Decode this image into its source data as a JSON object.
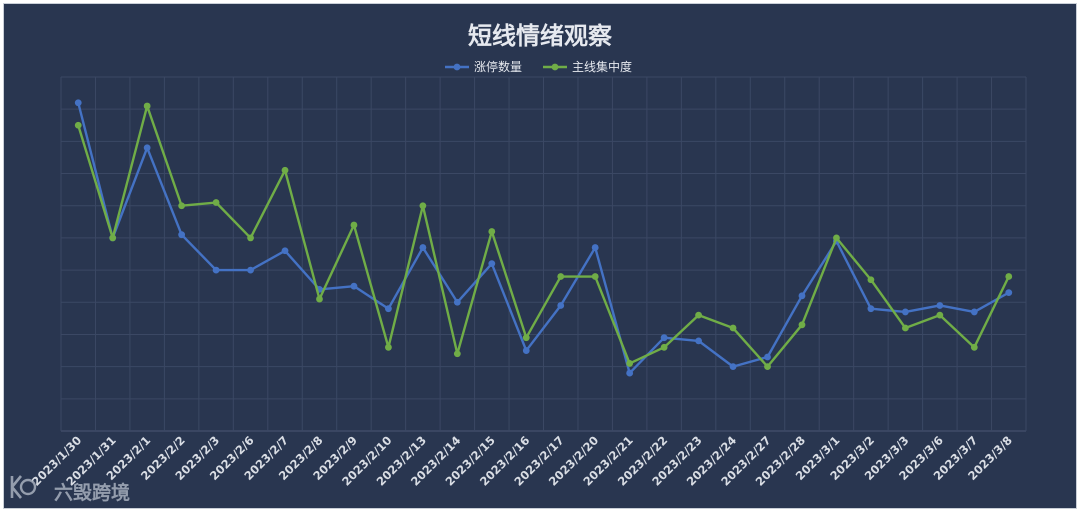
{
  "chart_data": {
    "type": "line",
    "title": "短线情绪观察",
    "categories": [
      "2023/1/30",
      "2023/1/31",
      "2023/2/1",
      "2023/2/2",
      "2023/2/3",
      "2023/2/6",
      "2023/2/7",
      "2023/2/8",
      "2023/2/9",
      "2023/2/10",
      "2023/2/13",
      "2023/2/14",
      "2023/2/15",
      "2023/2/16",
      "2023/2/17",
      "2023/2/20",
      "2023/2/21",
      "2023/2/22",
      "2023/2/23",
      "2023/2/24",
      "2023/2/27",
      "2023/2/28",
      "2023/3/1",
      "2023/3/2",
      "2023/3/3",
      "2023/3/6",
      "2023/3/7",
      "2023/3/8"
    ],
    "series": [
      {
        "name": "涨停数量",
        "color": "#4472c4",
        "values": [
          9.2,
          5.0,
          7.8,
          5.1,
          4.0,
          4.0,
          4.6,
          3.4,
          3.5,
          2.8,
          4.7,
          3.0,
          4.2,
          1.5,
          2.9,
          4.7,
          0.8,
          1.9,
          1.8,
          1.0,
          1.3,
          3.2,
          4.9,
          2.8,
          2.7,
          2.9,
          2.7,
          3.3
        ]
      },
      {
        "name": "主线集中度",
        "color": "#70ad47",
        "values": [
          8.5,
          5.0,
          9.1,
          6.0,
          6.1,
          5.0,
          7.1,
          3.1,
          5.4,
          1.6,
          6.0,
          1.4,
          5.2,
          1.9,
          3.8,
          3.8,
          1.1,
          1.6,
          2.6,
          2.2,
          1.0,
          2.3,
          5.0,
          3.7,
          2.2,
          2.6,
          1.6,
          3.8
        ]
      }
    ],
    "ylim": [
      -1,
      10
    ],
    "grid": true,
    "legend_position": "top-center",
    "xlabel": "",
    "ylabel": ""
  },
  "watermark": {
    "logo_text": "K",
    "text": "六毁跨境"
  },
  "colors": {
    "background": "#293650",
    "grid": "#3b4864",
    "text": "#e6e9ef"
  }
}
